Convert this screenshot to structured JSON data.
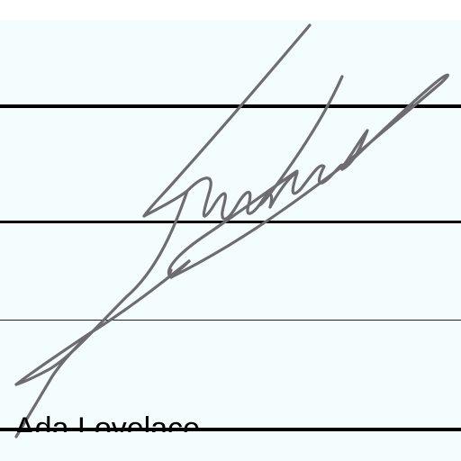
{
  "signature_block": {
    "signer_name": "Ada Lovelace",
    "ink_color": "#6e6c70",
    "paper_color": "#f4fdfd",
    "rule_color": "#000000"
  }
}
